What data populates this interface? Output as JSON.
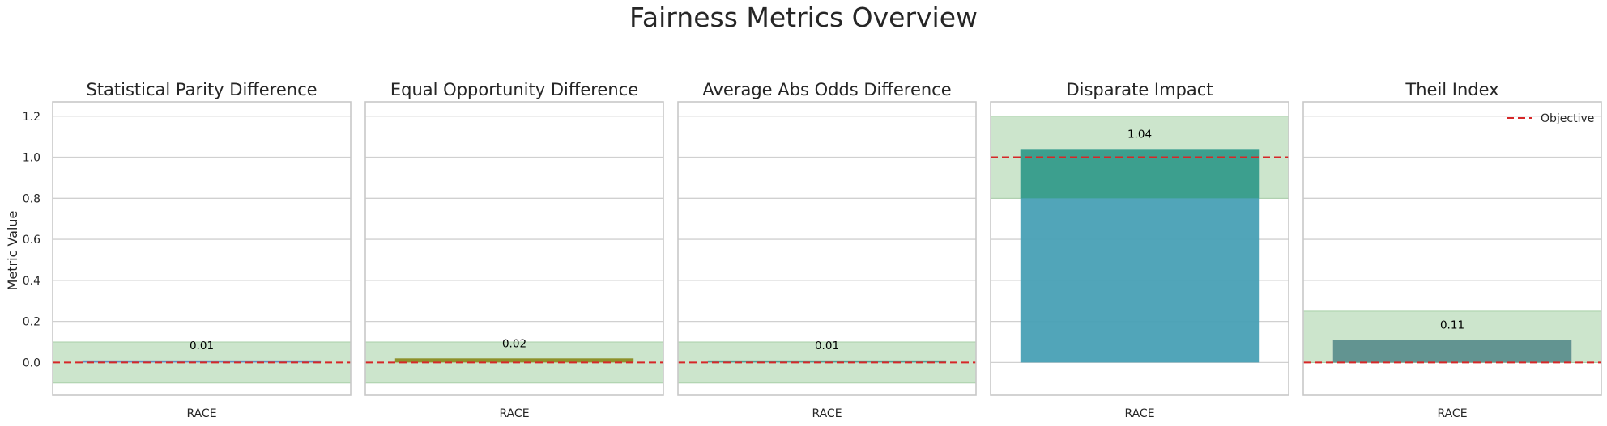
{
  "chart_data": {
    "type": "bar",
    "title": "Fairness Metrics Overview",
    "ylabel": "Metric Value",
    "ylim": [
      -0.16,
      1.27
    ],
    "yticks": [
      0.0,
      0.2,
      0.4,
      0.6,
      0.8,
      1.0,
      1.2
    ],
    "ytick_labels": [
      "0.0",
      "0.2",
      "0.4",
      "0.6",
      "0.8",
      "1.0",
      "1.2"
    ],
    "grid": true,
    "legend": {
      "entries": [
        "Objective"
      ],
      "placement": "top-right"
    },
    "objective_color": "#d62728",
    "fair_band_color": "#cce5cc",
    "panels": [
      {
        "title": "Statistical Parity Difference",
        "categories": [
          "RACE"
        ],
        "values": [
          0.01
        ],
        "value_labels": [
          "0.01"
        ],
        "objective": 0.0,
        "fair_range": [
          -0.1,
          0.1
        ],
        "color": "#5b86c0"
      },
      {
        "title": "Equal Opportunity Difference",
        "categories": [
          "RACE"
        ],
        "values": [
          0.02
        ],
        "value_labels": [
          "0.02"
        ],
        "objective": 0.0,
        "fair_range": [
          -0.1,
          0.1
        ],
        "color": "#8a8b22"
      },
      {
        "title": "Average Abs Odds Difference",
        "categories": [
          "RACE"
        ],
        "values": [
          0.01
        ],
        "value_labels": [
          "0.01"
        ],
        "objective": 0.0,
        "fair_range": [
          -0.1,
          0.1
        ],
        "color": "#4a9a8f"
      },
      {
        "title": "Disparate Impact",
        "categories": [
          "RACE"
        ],
        "values": [
          1.04
        ],
        "value_labels": [
          "1.04"
        ],
        "objective": 1.0,
        "fair_range": [
          0.8,
          1.2
        ],
        "color": "#48a0b5"
      },
      {
        "title": "Theil Index",
        "categories": [
          "RACE"
        ],
        "values": [
          0.11
        ],
        "value_labels": [
          "0.11"
        ],
        "objective": 0.0,
        "fair_range": [
          0.0,
          0.25
        ],
        "color": "#a088bb"
      }
    ]
  }
}
